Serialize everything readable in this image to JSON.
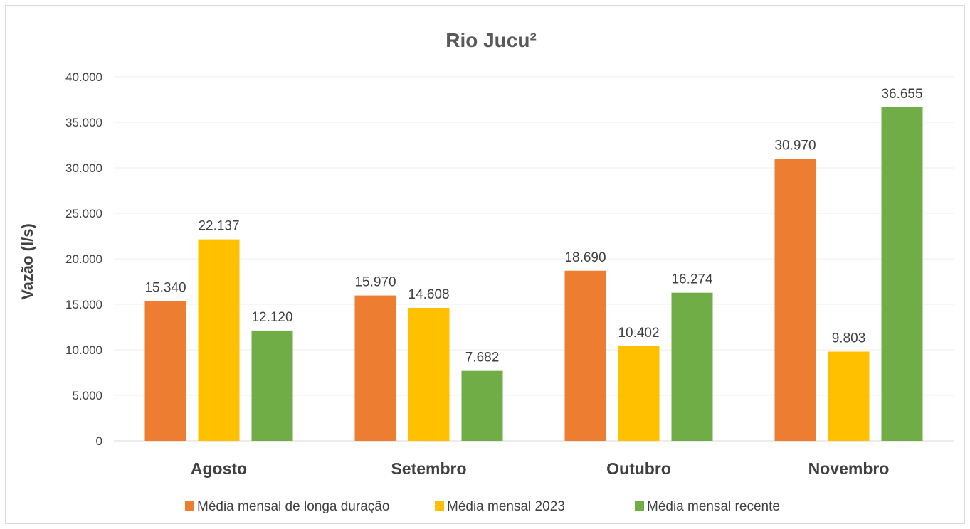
{
  "chart_data": {
    "type": "bar",
    "title": "Rio Jucu²",
    "xlabel": "",
    "ylabel": "Vazão (l/s)",
    "ylim": [
      0,
      40000
    ],
    "y_ticks": [
      0,
      5000,
      10000,
      15000,
      20000,
      25000,
      30000,
      35000,
      40000
    ],
    "y_tick_labels": [
      "0",
      "5.000",
      "10.000",
      "15.000",
      "20.000",
      "25.000",
      "30.000",
      "35.000",
      "40.000"
    ],
    "grid": true,
    "legend_position": "bottom",
    "categories": [
      "Agosto",
      "Setembro",
      "Outubro",
      "Novembro"
    ],
    "series": [
      {
        "name": "Média mensal de longa duração",
        "color": "#ED7D31",
        "values": [
          15340,
          15970,
          18690,
          30970
        ],
        "labels": [
          "15.340",
          "15.970",
          "18.690",
          "30.970"
        ]
      },
      {
        "name": "Média mensal 2023",
        "color": "#FFC000",
        "values": [
          22137,
          14608,
          10402,
          9803
        ],
        "labels": [
          "22.137",
          "14.608",
          "10.402",
          "9.803"
        ]
      },
      {
        "name": "Média mensal recente",
        "color": "#70AD47",
        "values": [
          12120,
          7682,
          16274,
          36655
        ],
        "labels": [
          "12.120",
          "7.682",
          "16.274",
          "36.655"
        ]
      }
    ]
  }
}
